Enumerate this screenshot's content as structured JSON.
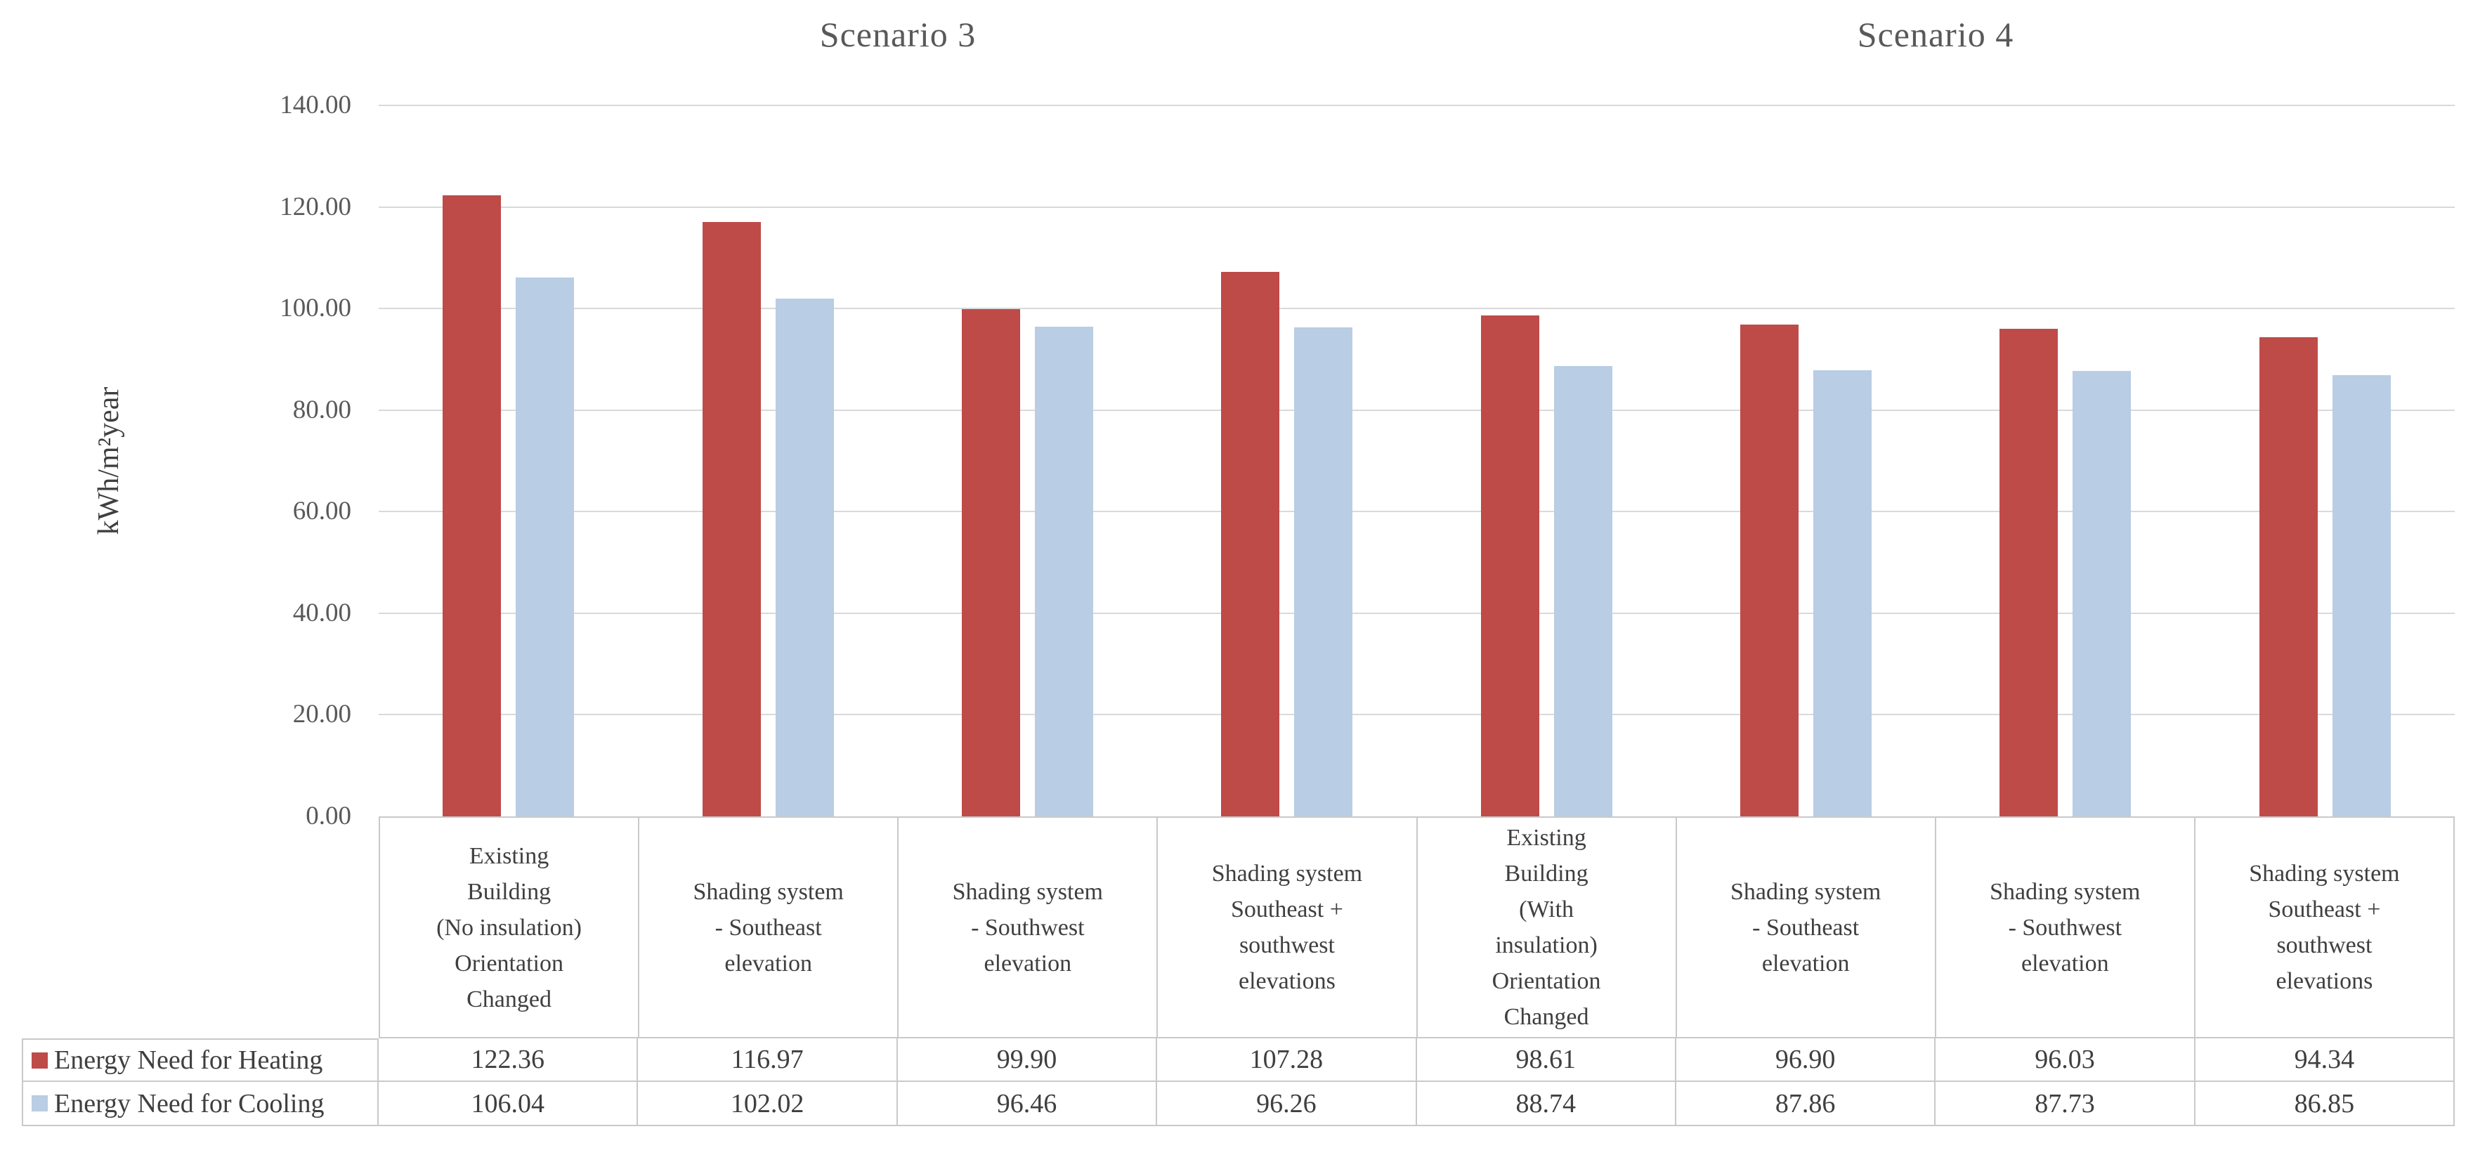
{
  "chart_data": {
    "type": "bar",
    "panel_titles": [
      "Scenario 3",
      "Scenario 4"
    ],
    "ylabel": "kWh/m²year",
    "y_axis": {
      "min": 0,
      "max": 140,
      "step": 20
    },
    "y_ticks": [
      "140.00",
      "120.00",
      "100.00",
      "80.00",
      "60.00",
      "40.00",
      "20.00",
      "0.00"
    ],
    "grid": true,
    "legend_position": "table-left",
    "categories": [
      "Existing\nBuilding\n(No insulation)\nOrientation\nChanged",
      "Shading system\n- Southeast\nelevation",
      "Shading system\n- Southwest\nelevation",
      "Shading system\nSoutheast +\nsouthwest\nelevations",
      "Existing\nBuilding\n(With\ninsulation)\nOrientation\nChanged",
      "Shading system\n- Southeast\nelevation",
      "Shading system\n- Southwest\nelevation",
      "Shading system\nSoutheast +\nsouthwest\nelevations"
    ],
    "series": [
      {
        "name": "Energy Need for Heating",
        "color": "#be4b48",
        "values": [
          122.36,
          116.97,
          99.9,
          107.28,
          98.61,
          96.9,
          96.03,
          94.34
        ]
      },
      {
        "name": "Energy Need for Cooling",
        "color": "#b9cde4",
        "values": [
          106.04,
          102.02,
          96.46,
          96.26,
          88.74,
          87.86,
          87.73,
          86.85
        ]
      }
    ],
    "colors": {
      "gridline": "#d9d9d9",
      "table_border": "#c9c9c9",
      "axis_text": "#595959",
      "body_text": "#3f3f3f"
    }
  }
}
